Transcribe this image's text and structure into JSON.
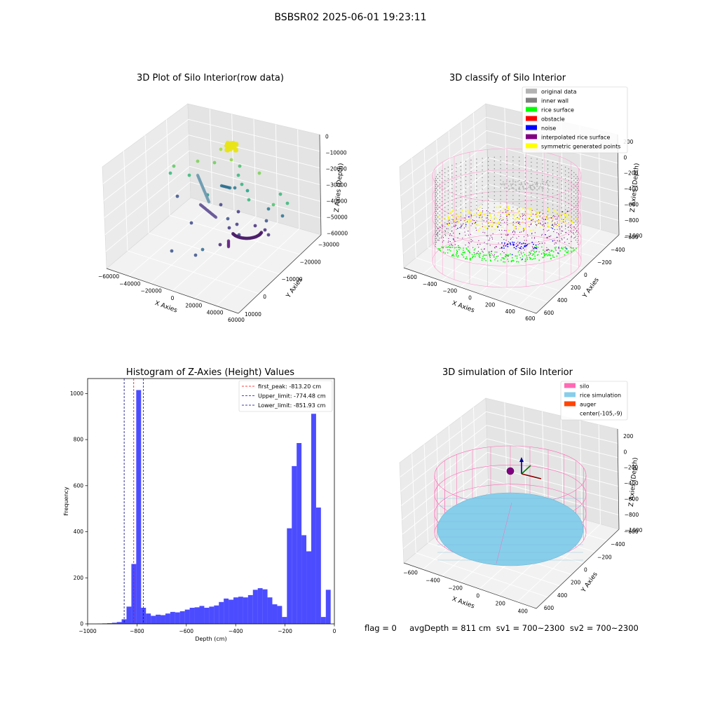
{
  "suptitle": "BSBSR02 2025-06-01 19:23:11",
  "footer": "flag = 0     avgDepth = 811 cm  sv1 = 700~2300  sv2 = 700~2300",
  "chart_data": [
    {
      "type": "scatter",
      "title": "3D Plot of Silo Interior(row data)",
      "xlabel": "X Axies",
      "ylabel": "Y Axies",
      "zlabel": "Z Axies (Depth)",
      "x_ticks": [
        "−60000",
        "−40000",
        "−20000",
        "0",
        "20000",
        "40000",
        "60000"
      ],
      "y_ticks": [
        "10000",
        "0",
        "−10000",
        "−20000",
        "−30000"
      ],
      "z_ticks": [
        "0",
        "−10000",
        "−20000",
        "−30000",
        "−40000",
        "−50000",
        "−60000"
      ],
      "colormap": "viridis"
    },
    {
      "type": "scatter",
      "title": "3D classify of Silo Interior",
      "xlabel": "X Axies",
      "ylabel": "Y Axies",
      "zlabel": "Z Axies (Depth)",
      "x_ticks": [
        "−600",
        "−400",
        "−200",
        "0",
        "200",
        "400",
        "600"
      ],
      "y_ticks": [
        "600",
        "400",
        "200",
        "0",
        "−200",
        "−400",
        "−600"
      ],
      "z_ticks": [
        "200",
        "0",
        "−200",
        "−400",
        "−600",
        "−800",
        "−1000"
      ],
      "legend": [
        {
          "label": "original data",
          "color": "#b3b3b3"
        },
        {
          "label": "inner wall",
          "color": "#808080"
        },
        {
          "label": "rice surface",
          "color": "#00ff00"
        },
        {
          "label": "obstacle",
          "color": "#ff0000"
        },
        {
          "label": "noise",
          "color": "#0000ff"
        },
        {
          "label": "interpolated rice surface",
          "color": "#800080"
        },
        {
          "label": "symmetric generated points",
          "color": "#ffff00"
        }
      ],
      "legend_position": "top-right"
    },
    {
      "type": "bar",
      "title": "Histogram of Z-Axies (Height) Values",
      "xlabel": "Depth (cm)",
      "ylabel": "Frequency",
      "xlim": [
        -1000,
        0
      ],
      "ylim": [
        0,
        1065
      ],
      "x_ticks": [
        -1000,
        -800,
        -600,
        -400,
        -200,
        0
      ],
      "x_tick_labels": [
        "−1000",
        "−800",
        "−600",
        "−400",
        "−200",
        "0"
      ],
      "y_ticks": [
        0,
        200,
        400,
        600,
        800,
        1000
      ],
      "bin_start": -1000,
      "bin_width": 19.7,
      "values": [
        0,
        0,
        1,
        2,
        3,
        5,
        8,
        20,
        75,
        260,
        1015,
        70,
        45,
        35,
        40,
        38,
        45,
        52,
        50,
        55,
        62,
        70,
        72,
        78,
        70,
        75,
        80,
        95,
        110,
        105,
        115,
        118,
        115,
        125,
        148,
        155,
        150,
        115,
        85,
        78,
        30,
        415,
        685,
        785,
        385,
        315,
        912,
        505,
        30,
        148
      ],
      "bar_color": "#0000ff",
      "lines": [
        {
          "value": -813.2,
          "label": "first_peak: -813.20 cm",
          "color": "#ff0000"
        },
        {
          "value": -774.48,
          "label": "Upper_limit: -774.48 cm",
          "color": "#0000ff"
        },
        {
          "value": -851.93,
          "label": "Lower_limit: -851.93 cm",
          "color": "#000080"
        }
      ],
      "legend_position": "top-right"
    },
    {
      "type": "scatter",
      "title": "3D simulation of Silo Interior",
      "xlabel": "X Axies",
      "ylabel": "Y Axies",
      "zlabel": "Z Axies (Depth)",
      "x_ticks": [
        "−600",
        "−400",
        "−200",
        "0",
        "200",
        "400"
      ],
      "y_ticks": [
        "600",
        "400",
        "200",
        "0",
        "−200",
        "−400",
        "−600"
      ],
      "z_ticks": [
        "200",
        "0",
        "−200",
        "−400",
        "−600",
        "−800",
        "−1000"
      ],
      "legend": [
        {
          "label": "silo",
          "color": "#ff69b4"
        },
        {
          "label": "rice simulation",
          "color": "#87ceeb"
        },
        {
          "label": "auger",
          "color": "#ff4500"
        },
        {
          "label": "center(-105,-9)",
          "color": "none"
        }
      ],
      "legend_position": "top-right"
    }
  ]
}
